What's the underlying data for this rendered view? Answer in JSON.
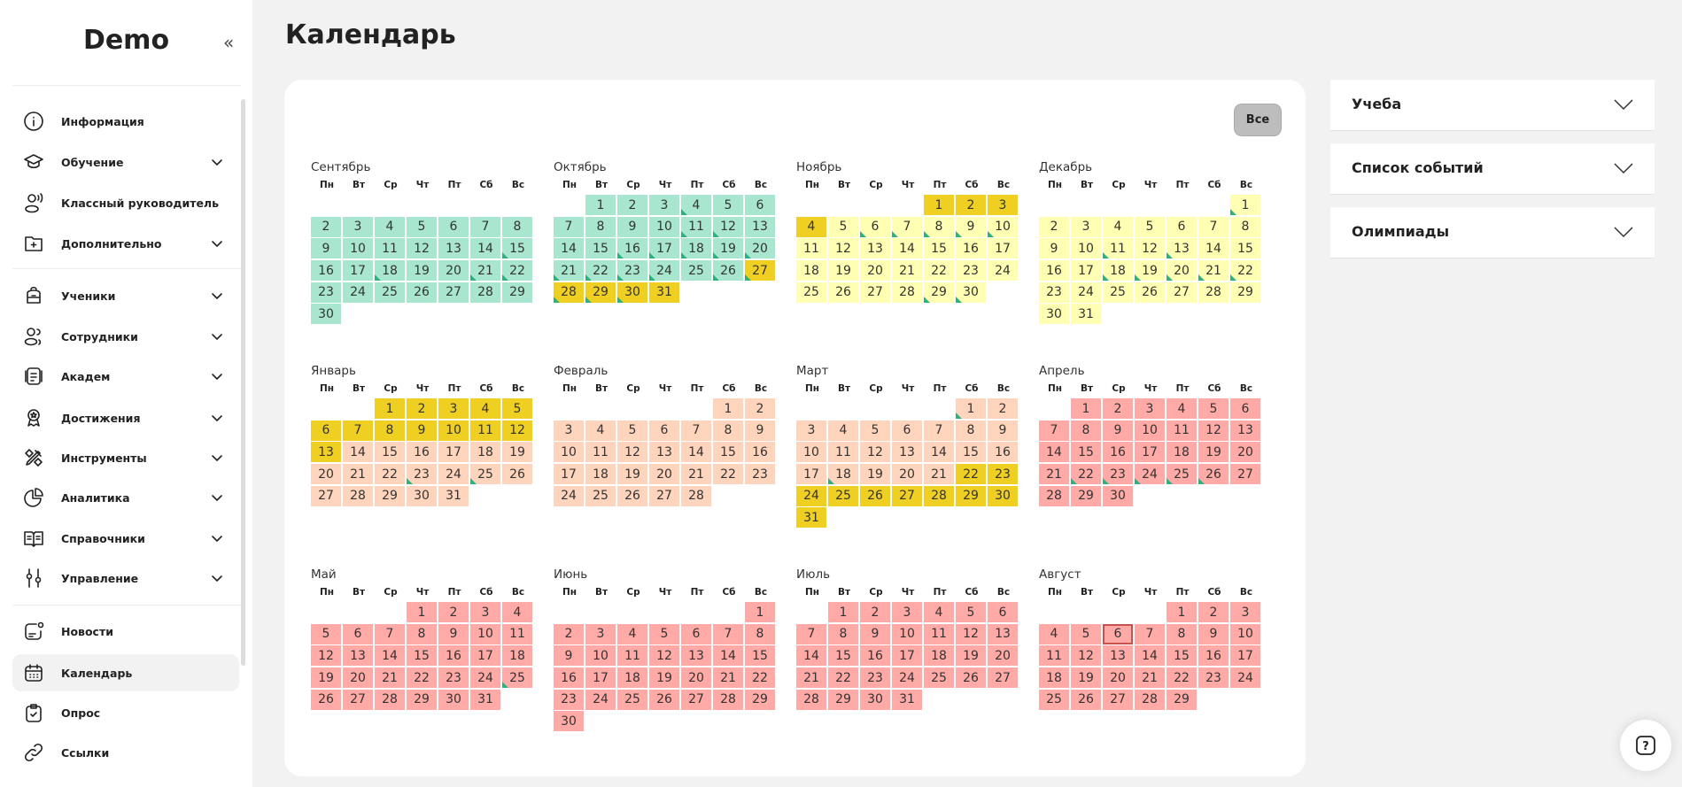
{
  "sidebar": {
    "logo": "Demo",
    "collapse_icon": "double-chevron-left-icon",
    "items": [
      {
        "label": "Информация",
        "icon": "info",
        "chevron": false
      },
      {
        "label": "Обучение",
        "icon": "graduation-cap",
        "chevron": true
      },
      {
        "label": "Классный руководитель",
        "icon": "user-voice",
        "chevron": false
      },
      {
        "label": "Дополнительно",
        "icon": "folder-plus",
        "chevron": true
      },
      {
        "label": "Ученики",
        "icon": "backpack",
        "chevron": true
      },
      {
        "label": "Сотрудники",
        "icon": "users",
        "chevron": true
      },
      {
        "label": "Академ",
        "icon": "document",
        "chevron": true
      },
      {
        "label": "Достижения",
        "icon": "award",
        "chevron": true
      },
      {
        "label": "Инструменты",
        "icon": "tools",
        "chevron": true
      },
      {
        "label": "Аналитика",
        "icon": "pie-chart",
        "chevron": true
      },
      {
        "label": "Справочники",
        "icon": "book",
        "chevron": true
      },
      {
        "label": "Управление",
        "icon": "sliders",
        "chevron": true
      },
      {
        "label": "Новости",
        "icon": "news",
        "chevron": false
      },
      {
        "label": "Календарь",
        "icon": "calendar",
        "chevron": false,
        "active": true
      },
      {
        "label": "Опрос",
        "icon": "clipboard-check",
        "chevron": false
      },
      {
        "label": "Ссылки",
        "icon": "link",
        "chevron": false
      }
    ]
  },
  "page": {
    "title": "Календарь",
    "all_button": "Все"
  },
  "colors": {
    "green": "#a8e6cf",
    "lightyellow": "#ffffb3",
    "gold": "#f0cf23",
    "peach": "#ffd4bc",
    "pink": "#ffaaa6",
    "marker": "#2bb37f",
    "today_border": "#c9504d"
  },
  "weekdays": [
    "Пн",
    "Вт",
    "Ср",
    "Чт",
    "Пт",
    "Сб",
    "Вс"
  ],
  "months": [
    {
      "name": "Сентябрь",
      "start": 6,
      "days": 30,
      "hidden": [
        1
      ],
      "color": "green",
      "overrides": [],
      "markers": [
        15,
        18,
        21,
        22
      ]
    },
    {
      "name": "Октябрь",
      "start": 1,
      "days": 31,
      "color": "green",
      "overrides": [
        {
          "from": 27,
          "to": 31,
          "color": "gold"
        }
      ],
      "markers": [
        4,
        11,
        12,
        16,
        17,
        18,
        19,
        20,
        21,
        22,
        23,
        24,
        26,
        27,
        28,
        29,
        30
      ]
    },
    {
      "name": "Ноябрь",
      "start": 4,
      "days": 30,
      "color": "lightyellow",
      "overrides": [
        {
          "from": 1,
          "to": 4,
          "color": "gold"
        }
      ],
      "markers": [
        6,
        7,
        8,
        9,
        10,
        29,
        30
      ]
    },
    {
      "name": "Декабрь",
      "start": 6,
      "days": 31,
      "color": "lightyellow",
      "overrides": [],
      "markers": [
        1,
        11,
        13,
        18,
        19,
        20,
        21,
        22
      ]
    },
    {
      "name": "Январь",
      "start": 2,
      "days": 31,
      "color": "peach",
      "overrides": [
        {
          "from": 1,
          "to": 13,
          "color": "gold"
        }
      ],
      "markers": [
        23,
        25
      ]
    },
    {
      "name": "Февраль",
      "start": 5,
      "days": 28,
      "color": "peach",
      "overrides": [],
      "markers": []
    },
    {
      "name": "Март",
      "start": 5,
      "days": 31,
      "color": "peach",
      "overrides": [
        {
          "from": 22,
          "to": 31,
          "color": "gold"
        }
      ],
      "markers": [
        1,
        18
      ]
    },
    {
      "name": "Апрель",
      "start": 1,
      "days": 30,
      "color": "pink",
      "overrides": [],
      "markers": [
        22,
        23,
        24,
        25,
        26
      ]
    },
    {
      "name": "Май",
      "start": 3,
      "days": 31,
      "color": "pink",
      "overrides": [],
      "markers": [
        25
      ]
    },
    {
      "name": "Июнь",
      "start": 6,
      "days": 30,
      "color": "pink",
      "overrides": [],
      "markers": []
    },
    {
      "name": "Июль",
      "start": 1,
      "days": 31,
      "color": "pink",
      "overrides": [],
      "markers": []
    },
    {
      "name": "Август",
      "start": 4,
      "days": 29,
      "color": "pink",
      "overrides": [],
      "markers": [],
      "today": 6
    }
  ],
  "panels": [
    {
      "label": "Учеба"
    },
    {
      "label": "Список событий"
    },
    {
      "label": "Олимпиады"
    }
  ],
  "help": {
    "icon": "help-question-icon"
  }
}
